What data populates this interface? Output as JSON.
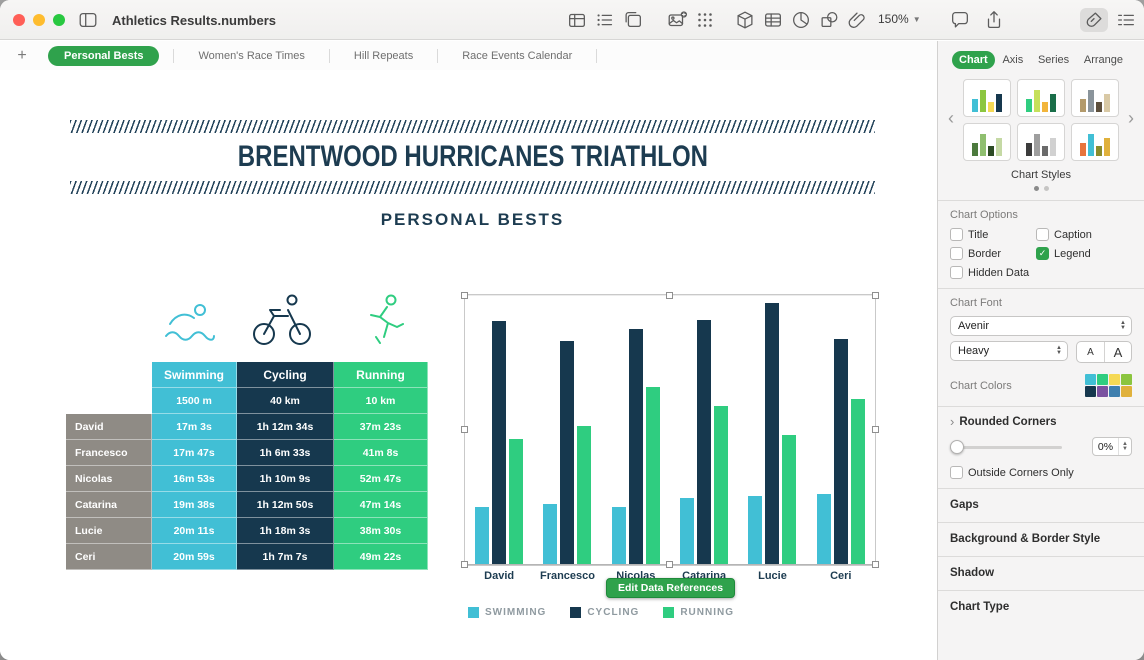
{
  "window": {
    "title": "Athletics Results.numbers",
    "zoom": "150%"
  },
  "toolbar": {
    "icon_names": [
      "sidebar-toggle",
      "add-table",
      "bulleted-list",
      "table-copy",
      "insert-media",
      "apps-grid",
      "insert-object",
      "insert-table",
      "insert-chart",
      "insert-shape",
      "attachment",
      "comment",
      "share",
      "format-brush",
      "organize"
    ]
  },
  "tabs": {
    "add_label": "+",
    "items": [
      {
        "label": "Personal Bests",
        "active": true
      },
      {
        "label": "Women's Race Times",
        "active": false
      },
      {
        "label": "Hill Repeats",
        "active": false
      },
      {
        "label": "Race Events Calendar",
        "active": false
      }
    ]
  },
  "sheet": {
    "title": "BRENTWOOD HURRICANES TRIATHLON",
    "subtitle": "PERSONAL BESTS"
  },
  "table": {
    "row_header_color": "#8f8b85",
    "columns": [
      {
        "label": "Swimming",
        "sub": "1500 m",
        "color": "#41bfd5"
      },
      {
        "label": "Cycling",
        "sub": "40 km",
        "color": "#16384e"
      },
      {
        "label": "Running",
        "sub": "10 km",
        "color": "#2fcd80"
      }
    ],
    "rows": [
      {
        "name": "David",
        "values": [
          "17m 3s",
          "1h 12m 34s",
          "37m 23s"
        ]
      },
      {
        "name": "Francesco",
        "values": [
          "17m 47s",
          "1h 6m 33s",
          "41m 8s"
        ]
      },
      {
        "name": "Nicolas",
        "values": [
          "16m 53s",
          "1h 10m 9s",
          "52m 47s"
        ]
      },
      {
        "name": "Catarina",
        "values": [
          "19m 38s",
          "1h 12m 50s",
          "47m 14s"
        ]
      },
      {
        "name": "Lucie",
        "values": [
          "20m 11s",
          "1h 18m 3s",
          "38m 30s"
        ]
      },
      {
        "name": "Ceri",
        "values": [
          "20m 59s",
          "1h 7m 7s",
          "49m 22s"
        ]
      }
    ]
  },
  "chart_data": {
    "type": "bar",
    "title": "",
    "categories": [
      "David",
      "Francesco",
      "Nicolas",
      "Catarina",
      "Lucie",
      "Ceri"
    ],
    "series": [
      {
        "name": "SWIMMING",
        "color": "#41bfd5",
        "values": [
          17.05,
          17.78,
          16.88,
          19.63,
          20.18,
          20.98
        ]
      },
      {
        "name": "CYCLING",
        "color": "#16384e",
        "values": [
          72.57,
          66.55,
          70.15,
          72.83,
          78.05,
          67.12
        ]
      },
      {
        "name": "RUNNING",
        "color": "#2fcd80",
        "values": [
          37.38,
          41.13,
          52.78,
          47.23,
          38.5,
          49.37
        ]
      }
    ],
    "unit": "minutes",
    "ylim": [
      0,
      80
    ],
    "grid": false,
    "legend_position": "bottom"
  },
  "chart": {
    "edit_button": "Edit Data References"
  },
  "format_panel": {
    "tabs": [
      {
        "label": "Chart",
        "active": true
      },
      {
        "label": "Axis",
        "active": false
      },
      {
        "label": "Series",
        "active": false
      },
      {
        "label": "Arrange",
        "active": false
      }
    ],
    "styles_label": "Chart Styles",
    "style_thumbnails": [
      [
        "#41bfd5",
        "#8cc63f",
        "#f5d955",
        "#16384e"
      ],
      [
        "#2fcd80",
        "#c5e05a",
        "#f2b53c",
        "#1a6e49"
      ],
      [
        "#b39a6b",
        "#8a949b",
        "#5d4f3c",
        "#d9c9a5"
      ],
      [
        "#4c7a3d",
        "#8fbf6f",
        "#2c4a24",
        "#c5d9a5"
      ],
      [
        "#3c3c3c",
        "#9e9e9e",
        "#6b6b6b",
        "#d1d1d1"
      ],
      [
        "#e8743c",
        "#41bfd5",
        "#8a8c2c",
        "#e0b13c"
      ]
    ],
    "options_label": "Chart Options",
    "options": [
      {
        "label": "Title",
        "checked": false
      },
      {
        "label": "Caption",
        "checked": false
      },
      {
        "label": "Border",
        "checked": false
      },
      {
        "label": "Legend",
        "checked": true
      },
      {
        "label": "Hidden Data",
        "checked": false
      }
    ],
    "font_label": "Chart Font",
    "font_family": "Avenir",
    "font_weight": "Heavy",
    "font_size_buttons": [
      "A",
      "A"
    ],
    "colors_label": "Chart Colors",
    "color_swatches": [
      "#41bfd5",
      "#2fcd80",
      "#f5d955",
      "#8bc53f",
      "#16384e",
      "#7a52a0",
      "#3f7fae",
      "#e0b13c"
    ],
    "rounded_label": "Rounded Corners",
    "rounded_value": "0%",
    "outside_corners_label": "Outside Corners Only",
    "sections": [
      "Gaps",
      "Background & Border Style",
      "Shadow",
      "Chart Type"
    ]
  },
  "colors": {
    "accent_green": "#2fa24c",
    "navy": "#16384e",
    "teal": "#41bfd5",
    "green": "#2fcd80",
    "taupe": "#8f8b85",
    "title_navy": "#1d3c51"
  }
}
